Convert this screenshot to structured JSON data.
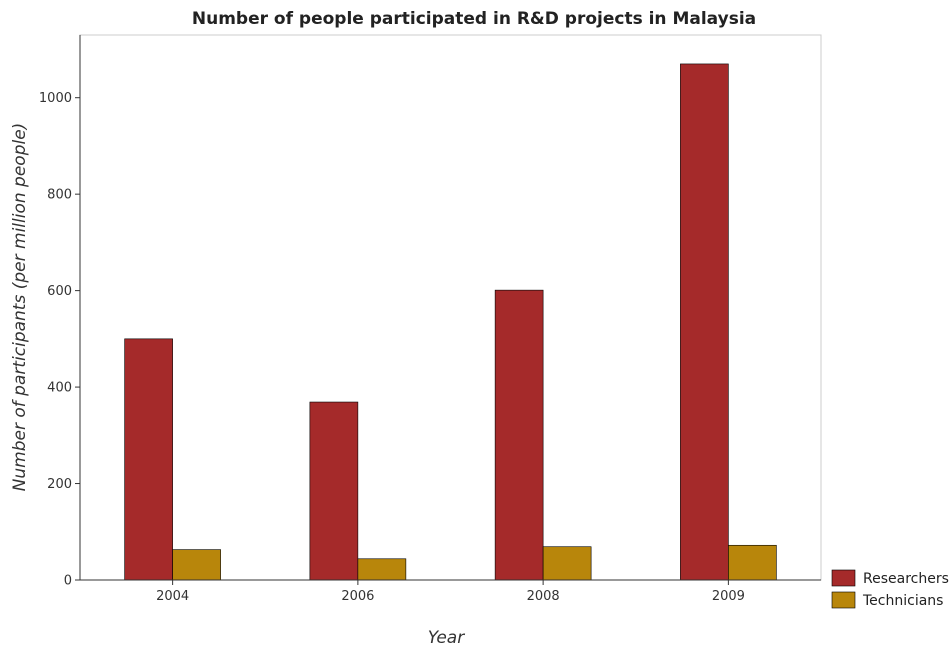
{
  "chart_data": {
    "type": "bar",
    "title": "Number of people participated in R&D projects in Malaysia",
    "xlabel": "Year",
    "ylabel": "Number of participants (per million people)",
    "categories": [
      "2004",
      "2006",
      "2008",
      "2009"
    ],
    "series": [
      {
        "name": "Researchers",
        "color": "#a52a2a",
        "values": [
          500,
          369,
          601,
          1070
        ]
      },
      {
        "name": "Technicians",
        "color": "#b8860b",
        "values": [
          63,
          44,
          69,
          72
        ]
      }
    ],
    "ylim": [
      0,
      1130
    ],
    "yticks": [
      0,
      200,
      400,
      600,
      800,
      1000
    ],
    "grid": false,
    "legend_position": "bottom-right",
    "bar_edge_color": "#000000"
  }
}
